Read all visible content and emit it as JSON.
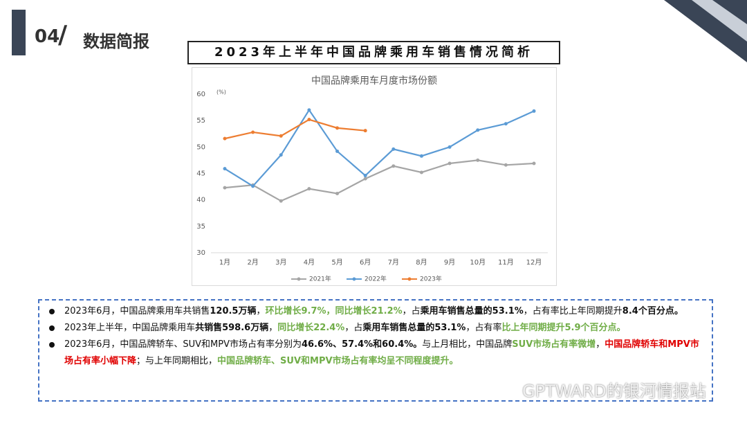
{
  "header": {
    "number": "04",
    "title": "数据简报"
  },
  "box_title": "2023年上半年中国品牌乘用车销售情况简析",
  "chart_data": {
    "type": "line",
    "title": "中国品牌乘用车月度市场份额",
    "y_unit": "(%)",
    "categories": [
      "1月",
      "2月",
      "3月",
      "4月",
      "5月",
      "6月",
      "7月",
      "8月",
      "9月",
      "10月",
      "11月",
      "12月"
    ],
    "series": [
      {
        "name": "2021年",
        "color": "#a5a5a5",
        "values": [
          42.3,
          42.8,
          39.8,
          42.1,
          41.2,
          44.0,
          46.4,
          45.2,
          46.9,
          47.5,
          46.6,
          46.9
        ]
      },
      {
        "name": "2022年",
        "color": "#5b9bd5",
        "values": [
          45.9,
          42.6,
          48.5,
          57.0,
          49.2,
          44.6,
          49.6,
          48.3,
          50.0,
          53.2,
          54.4,
          56.8
        ]
      },
      {
        "name": "2023年",
        "color": "#ed7d31",
        "values": [
          51.6,
          52.8,
          52.1,
          55.2,
          53.6,
          53.1,
          null,
          null,
          null,
          null,
          null,
          null
        ]
      }
    ],
    "ylim": [
      30,
      60
    ],
    "yticks": [
      30,
      35,
      40,
      45,
      50,
      55,
      60
    ],
    "grid": false,
    "legend": "bottom"
  },
  "bullets": [
    {
      "segments": [
        {
          "text": "2023年6月，中国品牌乘用车共销售",
          "style": "normal"
        },
        {
          "text": "120.5万辆",
          "style": "bold"
        },
        {
          "text": "，",
          "style": "normal"
        },
        {
          "text": "环比增长9.7%，同比增长21.2%",
          "style": "green"
        },
        {
          "text": "，占",
          "style": "normal"
        },
        {
          "text": "乘用车销售总量的53.1%",
          "style": "bold"
        },
        {
          "text": "，占有率比上年同期提升",
          "style": "normal"
        },
        {
          "text": "8.4个百分点。",
          "style": "bold"
        }
      ]
    },
    {
      "segments": [
        {
          "text": "2023年上半年，中国品牌乘用车",
          "style": "normal"
        },
        {
          "text": "共销售598.6万辆",
          "style": "bold"
        },
        {
          "text": "，",
          "style": "normal"
        },
        {
          "text": "同比增长22.4%",
          "style": "green"
        },
        {
          "text": "，占",
          "style": "normal"
        },
        {
          "text": "乘用车销售总量的53.1%",
          "style": "bold"
        },
        {
          "text": "，占有率",
          "style": "normal"
        },
        {
          "text": "比上年同期提升5.9个百分点。",
          "style": "green"
        }
      ]
    },
    {
      "segments": [
        {
          "text": "2023年6月，中国品牌轿车、SUV和MPV市场占有率分别为",
          "style": "normal"
        },
        {
          "text": "46.6%、57.4%和60.4%。",
          "style": "bold"
        },
        {
          "text": "与上月相比，中国品牌",
          "style": "normal"
        },
        {
          "text": "SUV市场占有率微增",
          "style": "green"
        },
        {
          "text": "，",
          "style": "normal"
        },
        {
          "text": "中国品牌轿车和MPV市场占有率小幅下降",
          "style": "red"
        },
        {
          "text": "；与上年同期相比，",
          "style": "normal"
        },
        {
          "text": "中国品牌轿车、SUV和MPV市场占有率均呈不同程度提升。",
          "style": "green"
        }
      ]
    }
  ],
  "watermark": "GPTWARD的银河情报站"
}
